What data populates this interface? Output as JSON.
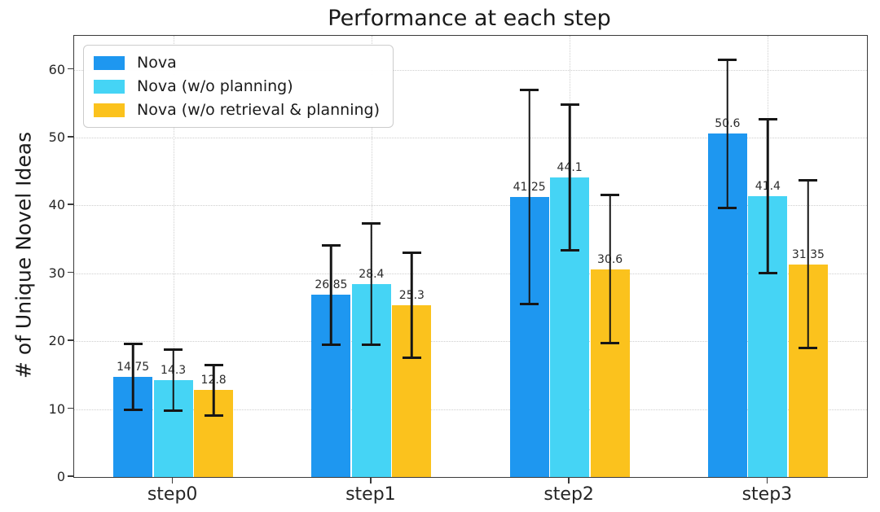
{
  "chart_data": {
    "type": "bar",
    "title": "Performance at each step",
    "xlabel": "",
    "ylabel": "# of Unique Novel Ideas",
    "categories": [
      "step0",
      "step1",
      "step2",
      "step3"
    ],
    "series": [
      {
        "name": "Nova",
        "color": "#1E97F0",
        "values": [
          14.75,
          26.85,
          41.25,
          50.6
        ],
        "errors": [
          5.0,
          7.5,
          15.9,
          11.1
        ]
      },
      {
        "name": "Nova (w/o planning)",
        "color": "#45D4F5",
        "values": [
          14.3,
          28.4,
          44.1,
          41.4
        ],
        "errors": [
          4.7,
          9.1,
          10.9,
          11.5
        ]
      },
      {
        "name": "Nova (w/o retrieval & planning)",
        "color": "#FBC21D",
        "values": [
          12.8,
          25.3,
          30.6,
          31.35
        ],
        "errors": [
          3.9,
          7.9,
          11.1,
          12.5
        ]
      }
    ],
    "ylim": [
      0,
      65
    ],
    "yticks": [
      0,
      10,
      20,
      30,
      40,
      50,
      60
    ],
    "grid": "dotted",
    "gridline_color": "#cecece",
    "error_bar_color": "#161616",
    "legend_position": "upper left",
    "value_labels_shown": true
  }
}
